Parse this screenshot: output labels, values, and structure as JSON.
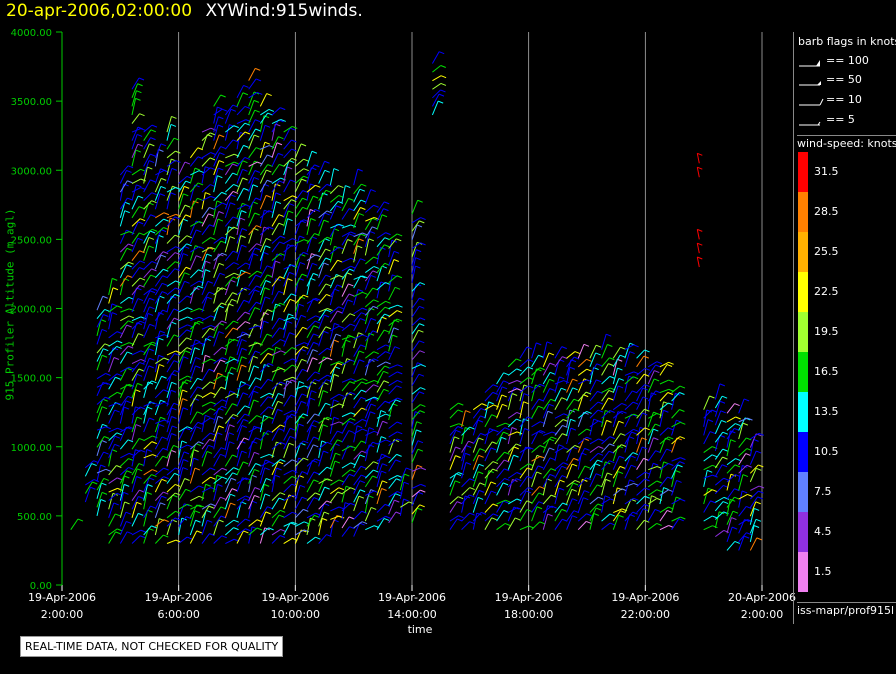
{
  "header": {
    "date_label": "20-apr-2006,02:00:00",
    "plot_name": "XYWind:915winds."
  },
  "notice": "REAL-TIME DATA, NOT CHECKED FOR QUALITY",
  "source": "iss-mapr/prof915l",
  "legend": {
    "flags_title": "barb flags in knots",
    "flags": [
      {
        "label": "== 100"
      },
      {
        "label": "== 50"
      },
      {
        "label": "== 10"
      },
      {
        "label": "== 5"
      }
    ],
    "speed_title": "wind-speed: knots",
    "colorbar": [
      {
        "label": "31.5",
        "color": "#ff0000"
      },
      {
        "label": "28.5",
        "color": "#ff8000"
      },
      {
        "label": "25.5",
        "color": "#ffb000"
      },
      {
        "label": "22.5",
        "color": "#ffff00"
      },
      {
        "label": "19.5",
        "color": "#a0ff30"
      },
      {
        "label": "16.5",
        "color": "#00e000"
      },
      {
        "label": "13.5",
        "color": "#00ffff"
      },
      {
        "label": "10.5",
        "color": "#0000ff"
      },
      {
        "label": "7.5",
        "color": "#6080ff"
      },
      {
        "label": "4.5",
        "color": "#9030e0"
      },
      {
        "label": "1.5",
        "color": "#f080f0"
      }
    ]
  },
  "chart_data": {
    "type": "scatter",
    "title": "XYWind:915winds.",
    "xlabel": "time",
    "ylabel": "915 Profiler Altitude (m agl)",
    "ylim": [
      0,
      4000
    ],
    "xlim_hours": [
      2,
      26
    ],
    "y_ticks": [
      "4000.00",
      "3500.00",
      "3000.00",
      "2500.00",
      "2000.00",
      "1500.00",
      "1000.00",
      "500.00",
      "0.00"
    ],
    "x_ticks": [
      {
        "date": "19-Apr-2006",
        "time": "2:00:00"
      },
      {
        "date": "19-Apr-2006",
        "time": "6:00:00"
      },
      {
        "date": "19-Apr-2006",
        "time": "10:00:00"
      },
      {
        "date": "19-Apr-2006",
        "time": "14:00:00"
      },
      {
        "date": "19-Apr-2006",
        "time": "18:00:00"
      },
      {
        "date": "19-Apr-2006",
        "time": "22:00:00"
      },
      {
        "date": "20-Apr-2006",
        "time": "2:00:00"
      }
    ],
    "grid": "vertical lines at x ticks",
    "series": [
      {
        "name": "wind barbs",
        "profiles": [
          {
            "t": 2.3,
            "bottom": 400,
            "top": 400
          },
          {
            "t": 2.8,
            "bottom": 600,
            "top": 900
          },
          {
            "t": 3.2,
            "bottom": 500,
            "top": 2000
          },
          {
            "t": 3.6,
            "bottom": 300,
            "top": 2100
          },
          {
            "t": 4.0,
            "bottom": 300,
            "top": 3000
          },
          {
            "t": 4.4,
            "bottom": 300,
            "top": 3600
          },
          {
            "t": 4.8,
            "bottom": 300,
            "top": 3300
          },
          {
            "t": 5.2,
            "bottom": 300,
            "top": 3100
          },
          {
            "t": 5.6,
            "bottom": 300,
            "top": 3300
          },
          {
            "t": 6.0,
            "bottom": 300,
            "top": 3000
          },
          {
            "t": 6.4,
            "bottom": 300,
            "top": 3100
          },
          {
            "t": 6.8,
            "bottom": 300,
            "top": 3300
          },
          {
            "t": 7.2,
            "bottom": 300,
            "top": 3500
          },
          {
            "t": 7.6,
            "bottom": 300,
            "top": 3400
          },
          {
            "t": 8.0,
            "bottom": 300,
            "top": 3550
          },
          {
            "t": 8.4,
            "bottom": 300,
            "top": 3700
          },
          {
            "t": 8.8,
            "bottom": 300,
            "top": 3500
          },
          {
            "t": 9.2,
            "bottom": 300,
            "top": 3400
          },
          {
            "t": 9.6,
            "bottom": 300,
            "top": 3300
          },
          {
            "t": 10.0,
            "bottom": 300,
            "top": 3100
          },
          {
            "t": 10.4,
            "bottom": 300,
            "top": 3050
          },
          {
            "t": 10.8,
            "bottom": 300,
            "top": 3000
          },
          {
            "t": 11.2,
            "bottom": 350,
            "top": 2900
          },
          {
            "t": 11.6,
            "bottom": 350,
            "top": 2800
          },
          {
            "t": 12.0,
            "bottom": 350,
            "top": 2900
          },
          {
            "t": 12.4,
            "bottom": 400,
            "top": 2800
          },
          {
            "t": 12.8,
            "bottom": 400,
            "top": 2700
          },
          {
            "t": 13.2,
            "bottom": 450,
            "top": 2500
          },
          {
            "t": 13.6,
            "bottom": 500,
            "top": 800
          },
          {
            "t": 14.0,
            "bottom": 450,
            "top": 2700
          },
          {
            "t": 14.7,
            "bottom": 3400,
            "top": 3800
          },
          {
            "t": 15.3,
            "bottom": 400,
            "top": 1300
          },
          {
            "t": 15.7,
            "bottom": 400,
            "top": 1200
          },
          {
            "t": 16.1,
            "bottom": 400,
            "top": 1300
          },
          {
            "t": 16.5,
            "bottom": 400,
            "top": 1400
          },
          {
            "t": 16.9,
            "bottom": 400,
            "top": 1500
          },
          {
            "t": 17.3,
            "bottom": 400,
            "top": 1600
          },
          {
            "t": 17.7,
            "bottom": 400,
            "top": 1650
          },
          {
            "t": 18.1,
            "bottom": 400,
            "top": 1650
          },
          {
            "t": 18.5,
            "bottom": 400,
            "top": 1650
          },
          {
            "t": 18.9,
            "bottom": 400,
            "top": 1700
          },
          {
            "t": 19.3,
            "bottom": 400,
            "top": 1650
          },
          {
            "t": 19.7,
            "bottom": 400,
            "top": 1650
          },
          {
            "t": 20.1,
            "bottom": 400,
            "top": 1650
          },
          {
            "t": 20.5,
            "bottom": 400,
            "top": 1750
          },
          {
            "t": 20.9,
            "bottom": 400,
            "top": 1700
          },
          {
            "t": 21.3,
            "bottom": 400,
            "top": 1750
          },
          {
            "t": 21.7,
            "bottom": 400,
            "top": 1700
          },
          {
            "t": 22.1,
            "bottom": 400,
            "top": 1600
          },
          {
            "t": 22.5,
            "bottom": 400,
            "top": 1600
          },
          {
            "t": 22.9,
            "bottom": 400,
            "top": 1400
          },
          {
            "t": 24.0,
            "bottom": 400,
            "top": 1300
          },
          {
            "t": 24.4,
            "bottom": 350,
            "top": 1400
          },
          {
            "t": 24.8,
            "bottom": 250,
            "top": 1300
          },
          {
            "t": 25.2,
            "bottom": 250,
            "top": 1300
          },
          {
            "t": 25.6,
            "bottom": 250,
            "top": 1100
          }
        ]
      }
    ]
  }
}
